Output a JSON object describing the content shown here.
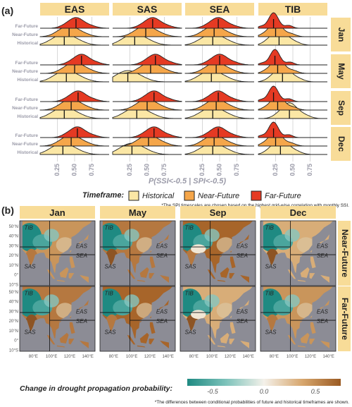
{
  "panel_labels": [
    "(a)",
    "(b)"
  ],
  "colors": {
    "strip_bg": "#f8dc98",
    "historical": "#fbe7a5",
    "near_future": "#f5a64a",
    "far_future": "#e53a23",
    "ocean": "#8c8c95",
    "dry": "#a7652a",
    "wet": "#1f8a82"
  },
  "chart_data": [
    {
      "type": "area",
      "subtype": "ridgeline density",
      "xlabel": "P(SSI<-0.5 | SPI<-0.5)",
      "x_ticks": [
        "0.25",
        "0.50",
        "0.75"
      ],
      "xlim": [
        0,
        1
      ],
      "columns": [
        "EAS",
        "SAS",
        "SEA",
        "TIB"
      ],
      "rows": [
        "Jan",
        "May",
        "Sep",
        "Dec"
      ],
      "series": [
        {
          "name": "Historical"
        },
        {
          "name": "Near-Future"
        },
        {
          "name": "Far-Future"
        }
      ],
      "legend_title": "Timeframe:",
      "legend_position": "bottom",
      "note": "*The SPI timescales are chosen based on the highest grid-wise correlation with monthly SSI.",
      "medians": {
        "EAS": {
          "Jan": [
            0.35,
            0.42,
            0.52
          ],
          "May": [
            0.38,
            0.5,
            0.6
          ],
          "Sep": [
            0.35,
            0.45,
            0.55
          ],
          "Dec": [
            0.33,
            0.45,
            0.54
          ]
        },
        "SAS": {
          "Jan": [
            0.32,
            0.48,
            0.58
          ],
          "May": [
            0.22,
            0.55,
            0.62
          ],
          "Sep": [
            0.35,
            0.5,
            0.6
          ],
          "Dec": [
            0.28,
            0.52,
            0.6
          ]
        },
        "SEA": {
          "Jan": [
            0.4,
            0.42,
            0.48
          ],
          "May": [
            0.38,
            0.45,
            0.5
          ],
          "Sep": [
            0.4,
            0.45,
            0.48
          ],
          "Dec": [
            0.4,
            0.42,
            0.48
          ]
        },
        "TIB": {
          "Jan": [
            0.3,
            0.25,
            0.22
          ],
          "May": [
            0.35,
            0.28,
            0.24
          ],
          "Sep": [
            0.45,
            0.28,
            0.22
          ],
          "Dec": [
            0.32,
            0.25,
            0.22
          ]
        }
      }
    },
    {
      "type": "heatmap",
      "subtype": "map panels",
      "columns": [
        "Jan",
        "May",
        "Sep",
        "Dec"
      ],
      "rows": [
        "Near-Future",
        "Far-Future"
      ],
      "regions": [
        "TIB",
        "EAS",
        "SEA",
        "SAS"
      ],
      "lat_ticks": [
        "50°N",
        "40°N",
        "30°N",
        "20°N",
        "10°N",
        "0°",
        "10°S"
      ],
      "lon_ticks": [
        "80°E",
        "100°E",
        "120°E",
        "140°E"
      ],
      "colorbar_title": "Change in drought propagation probability:",
      "colorbar_ticks": [
        "-0.5",
        "0.0",
        "0.5"
      ],
      "colorbar_range": [
        -0.75,
        0.75
      ],
      "note": "*The differences between conditional probabilities of future and historical timeframes are shown."
    }
  ]
}
